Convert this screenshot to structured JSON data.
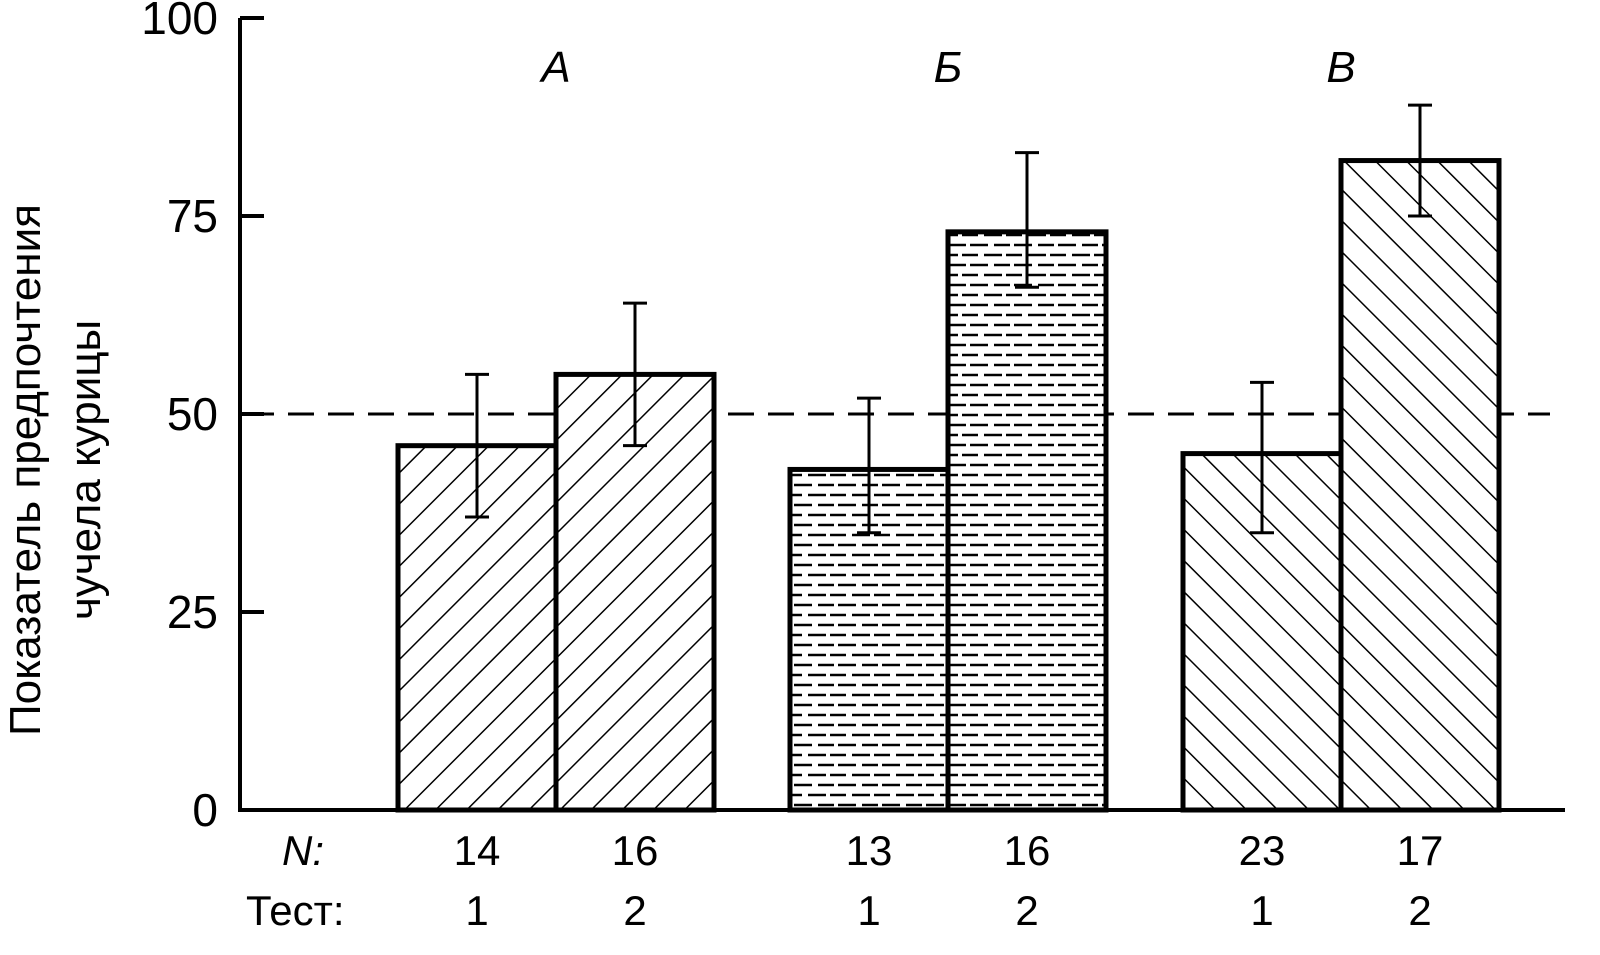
{
  "chart_data": {
    "type": "bar",
    "ylabel_lines": [
      "Показатель предпочтения",
      "чучела курицы"
    ],
    "ylim": [
      0,
      100
    ],
    "yticks": [
      "0",
      "25",
      "50",
      "75",
      "100"
    ],
    "reference_line": 50,
    "n_row_label": "N:",
    "test_row_label": "Тест:",
    "groups": [
      {
        "label": "А",
        "pattern": "hatch-back",
        "bars": [
          {
            "n": "14",
            "test": "1",
            "value": 46,
            "err_low": 37,
            "err_high": 55
          },
          {
            "n": "16",
            "test": "2",
            "value": 55,
            "err_low": 46,
            "err_high": 64
          }
        ]
      },
      {
        "label": "Б",
        "pattern": "dash",
        "bars": [
          {
            "n": "13",
            "test": "1",
            "value": 43,
            "err_low": 35,
            "err_high": 52
          },
          {
            "n": "16",
            "test": "2",
            "value": 73,
            "err_low": 66,
            "err_high": 83
          }
        ]
      },
      {
        "label": "В",
        "pattern": "hatch-fwd",
        "bars": [
          {
            "n": "23",
            "test": "1",
            "value": 45,
            "err_low": 35,
            "err_high": 54
          },
          {
            "n": "17",
            "test": "2",
            "value": 82,
            "err_low": 75,
            "err_high": 89
          }
        ]
      }
    ]
  }
}
